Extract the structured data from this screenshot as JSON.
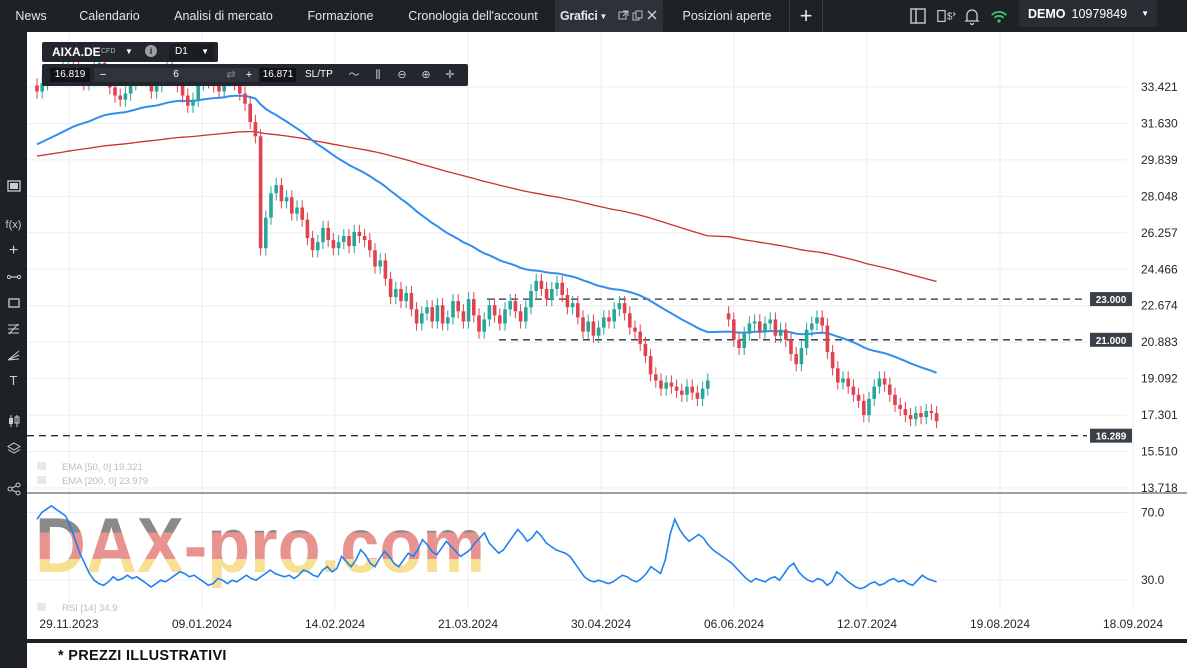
{
  "top_nav": {
    "tabs": [
      {
        "label": "News"
      },
      {
        "label": "Calendario"
      },
      {
        "label": "Analisi di mercato"
      },
      {
        "label": "Formazione"
      },
      {
        "label": "Cronologia dell'account"
      },
      {
        "label": "Grafici"
      },
      {
        "label": "Posizioni aperte"
      }
    ],
    "add_tab_label": "+",
    "account": {
      "mode": "DEMO",
      "number": "10979849"
    }
  },
  "trade_panel": {
    "symbol": "AIXA.DE",
    "symbol_type": "CFD",
    "timeframe": "D1",
    "bid": "16.819",
    "quantity": "6",
    "ask": "16.871",
    "sltp_label": "SL/TP"
  },
  "indicators": {
    "ema50": {
      "label": "EMA [50, 0] 19.321",
      "color": "#2f8ff0"
    },
    "ema200": {
      "label": "EMA [200, 0] 23.979",
      "color": "#c8342c"
    },
    "rsi": {
      "label": "RSI [14] 34.9",
      "color": "#1e82f0"
    }
  },
  "watermark": "DAX-pro.com",
  "disclaimer": "* PREZZI ILLUSTRATIVI",
  "colors": {
    "up": "#27a69a",
    "down": "#e0424f",
    "grid": "#eceef1",
    "level_tag_bg": "#3b4148"
  },
  "chart_data": {
    "type": "candlestick",
    "symbol": "AIXA.DE",
    "timeframe": "D1",
    "x_tick_labels": [
      "29.11.2023",
      "09.01.2024",
      "14.02.2024",
      "21.03.2024",
      "30.04.2024",
      "06.06.2024",
      "12.07.2024",
      "19.08.2024",
      "18.09.2024"
    ],
    "y_tick_labels": [
      "33.421",
      "31.630",
      "29.839",
      "28.048",
      "26.257",
      "24.466",
      "22.674",
      "20.883",
      "19.092",
      "17.301",
      "15.510",
      "13.718"
    ],
    "ylim": [
      13.718,
      33.421
    ],
    "horizontal_levels": [
      {
        "value": 23.0,
        "label": "23.000"
      },
      {
        "value": 21.0,
        "label": "21.000"
      },
      {
        "value": 16.289,
        "label": "16.289"
      }
    ],
    "candles_close_approx": [
      33.2,
      33.6,
      33.9,
      34.0,
      34.1,
      34.3,
      34.5,
      34.4,
      34.0,
      33.6,
      33.8,
      34.5,
      34.6,
      34.2,
      33.4,
      33.0,
      32.8,
      33.1,
      33.6,
      34.0,
      34.2,
      33.8,
      33.2,
      33.5,
      34.1,
      34.4,
      34.0,
      33.5,
      33.0,
      32.5,
      32.8,
      33.6,
      33.9,
      33.7,
      33.5,
      33.2,
      33.8,
      34.0,
      33.6,
      33.1,
      32.6,
      31.7,
      31.0,
      25.5,
      27.0,
      28.2,
      28.6,
      27.8,
      28.0,
      27.2,
      27.5,
      26.9,
      26.0,
      25.4,
      25.8,
      26.5,
      25.9,
      25.5,
      25.8,
      26.1,
      25.6,
      26.3,
      26.1,
      25.9,
      25.4,
      24.6,
      24.9,
      24.0,
      23.1,
      23.5,
      22.9,
      23.3,
      22.5,
      21.8,
      22.3,
      22.6,
      21.9,
      22.7,
      21.8,
      22.1,
      22.9,
      22.4,
      21.9,
      23.0,
      22.2,
      21.4,
      22.0,
      22.7,
      22.2,
      21.8,
      22.5,
      22.9,
      22.4,
      21.9,
      22.6,
      23.4,
      23.9,
      23.5,
      23.0,
      23.5,
      23.8,
      23.2,
      22.6,
      22.8,
      22.1,
      21.4,
      21.9,
      21.2,
      21.6,
      22.1,
      21.9,
      22.5,
      22.8,
      22.3,
      21.6,
      21.4,
      20.8,
      20.2,
      19.3,
      19.0,
      18.6,
      18.9,
      18.7,
      18.5,
      18.3,
      18.7,
      18.4,
      18.1,
      18.6,
      19.0,
      null,
      null,
      null,
      22.0,
      21.0,
      20.6,
      21.3,
      21.8,
      21.9,
      21.4,
      21.8,
      22.0,
      21.2,
      21.5,
      21.0,
      20.3,
      19.8,
      20.6,
      21.5,
      21.8,
      22.1,
      21.7,
      20.4,
      19.6,
      18.9,
      19.1,
      18.7,
      18.3,
      18.0,
      17.3,
      18.1,
      18.7,
      19.1,
      18.8,
      18.3,
      17.8,
      17.6,
      17.3,
      17.1,
      17.4,
      17.2,
      17.5,
      17.4,
      17.0
    ],
    "rsi_ylim": [
      13.0,
      78.0
    ],
    "rsi_tick_labels": [
      "70.0",
      "30.0"
    ],
    "rsi_values_approx": [
      66,
      70,
      72,
      74,
      72,
      70,
      68,
      62,
      54,
      46,
      40,
      34,
      30,
      28,
      27,
      29,
      32,
      30,
      31,
      33,
      31,
      32,
      30,
      28,
      26,
      28,
      30,
      29,
      31,
      33,
      35,
      34,
      32,
      33,
      31,
      29,
      27,
      28,
      31,
      30,
      28,
      30,
      29,
      31,
      33,
      31,
      30,
      32,
      34,
      36,
      34,
      33,
      32,
      33,
      31,
      33,
      36,
      35,
      33,
      32,
      36,
      38,
      35,
      37,
      44,
      41,
      38,
      42,
      48,
      45,
      40,
      38,
      43,
      47,
      44,
      40,
      38,
      42,
      46,
      44,
      48,
      54,
      51,
      47,
      45,
      49,
      53,
      50,
      47,
      44,
      46,
      48,
      52,
      55,
      58,
      52,
      49,
      46,
      48,
      52,
      56,
      60,
      57,
      53,
      55,
      59,
      56,
      52,
      50,
      48,
      47,
      46,
      44,
      40,
      36,
      32,
      30,
      29,
      30,
      29,
      28,
      29,
      31,
      33,
      32,
      30,
      29,
      31,
      34,
      38,
      36,
      34,
      42,
      57,
      66,
      60,
      56,
      53,
      55,
      57,
      55,
      51,
      48,
      46,
      44,
      42,
      40,
      37,
      34,
      31,
      29,
      31,
      30,
      29,
      31,
      32,
      30,
      34,
      38,
      40,
      35,
      32,
      30,
      29,
      31,
      30,
      27,
      29,
      35,
      33,
      30,
      28,
      26,
      25,
      26,
      28,
      29,
      27,
      28,
      30,
      31,
      29,
      30,
      28,
      27,
      30,
      33,
      31,
      30,
      29
    ]
  }
}
